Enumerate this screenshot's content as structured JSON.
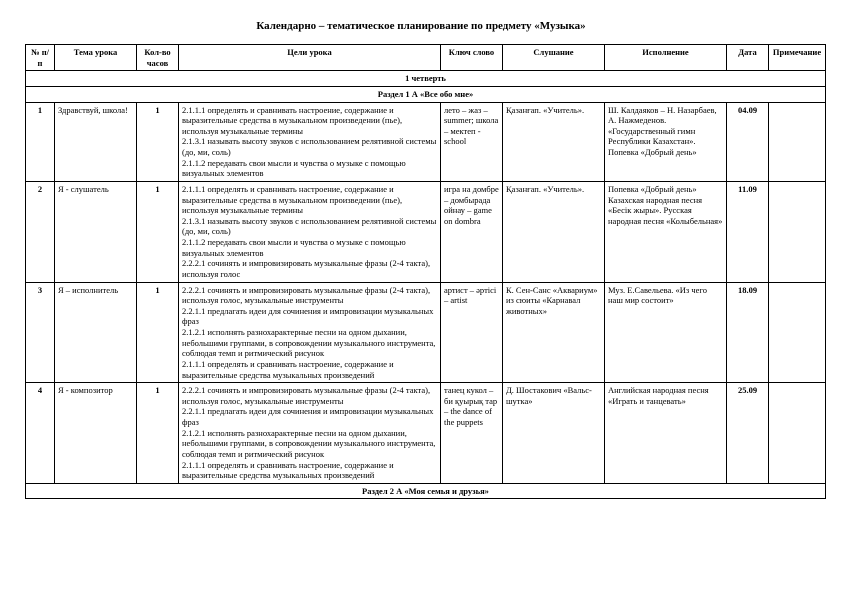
{
  "title": "Календарно – тематическое планирование по предмету «Музыка»",
  "headers": {
    "num": "№ п/п",
    "topic": "Тема урока",
    "hours": "Кол-во часов",
    "goals": "Цели урока",
    "key": "Ключ слово",
    "listen": "Слушание",
    "perform": "Исполнение",
    "date": "Дата",
    "note": "Примечание"
  },
  "quarter": "1 четверть",
  "section1": "Раздел 1 А «Все обо мне»",
  "section2": "Раздел 2 А «Моя семья и друзья»",
  "rows": [
    {
      "num": "1",
      "topic": "Здравствуй, школа!",
      "hours": "1",
      "goals": "2.1.1.1 определять и сравнивать настроение, содержание и выразительные средства в музыкальном произведении (пье), используя музыкальные термины\n2.1.3.1 называть высоту звуков с использованием релятивной системы (до, ми, соль)\n2.1.1.2 передавать свои мысли и чувства о музыке с помощью визуальных элементов",
      "key": "лето – жаз – summer; школа – мектеп - school",
      "listen": "Қазанғап. «Учитель».",
      "perform": "Ш. Калдаяков – Н. Назарбаев, А. Нажмеденов. «Государственный гимн Республики Казахстан». Попевка «Добрый день»",
      "date": "04.09",
      "note": ""
    },
    {
      "num": "2",
      "topic": "Я - слушатель",
      "hours": "1",
      "goals": "2.1.1.1 определять и сравнивать настроение, содержание и выразительные средства в музыкальном произведении (пье), используя музыкальные термины\n2.1.3.1 называть высоту звуков с использованием релятивной системы (до, ми, соль)\n2.1.1.2 передавать свои мысли и чувства о музыке с помощью визуальных элементов\n2.2.2.1 сочинять и импровизировать музыкальные фразы (2-4 такта), используя голос",
      "key": "игра на домбре – домбырада ойнау – game on dombra",
      "listen": "Қазанғап. «Учитель».",
      "perform": "Попевка «Добрый день» Казахская народная песня «Бесік жыры». Русская народная песня «Колыбельная»",
      "date": "11.09",
      "note": ""
    },
    {
      "num": "3",
      "topic": "Я – исполнитель",
      "hours": "1",
      "goals": "2.2.2.1 сочинять и импровизировать музыкальные фразы (2-4 такта), используя голос, музыкальные инструменты\n2.2.1.1 предлагать идеи для сочинения и импровизации музыкальных фраз\n2.1.2.1 исполнять разнохарактерные песни на одном дыхании, небольшими группами, в сопровождении музыкального инструмента, соблюдая темп и ритмический рисунок\n2.1.1.1 определять и сравнивать настроение, содержание и выразительные средства музыкальных произведений",
      "key": "артист – әртісі – artist",
      "listen": "К. Сен-Санс «Аквариум» из сюиты «Карнавал животных»",
      "perform": "Муз. Е.Савельева. «Из чего наш мир состоит»",
      "date": "18.09",
      "note": ""
    },
    {
      "num": "4",
      "topic": "Я - композитор",
      "hours": "1",
      "goals": "2.2.2.1 сочинять и импровизировать музыкальные фразы (2-4 такта), используя голос, музыкальные инструменты\n2.2.1.1 предлагать идеи для сочинения и импровизации музыкальных фраз\n2.1.2.1 исполнять разнохарактерные песни на одном дыхании, небольшими группами, в сопровождении музыкального инструмента, соблюдая темп и ритмический рисунок\n2.1.1.1 определять и сравнивать настроение, содержание и выразительные средства музыкальных произведений",
      "key": "танец кукол –би қуырық тар – the dance of the puppets",
      "listen": "Д. Шостакович «Вальс-шутка»",
      "perform": "Английская народная песня «Играть и танцевать»",
      "date": "25.09",
      "note": ""
    }
  ]
}
